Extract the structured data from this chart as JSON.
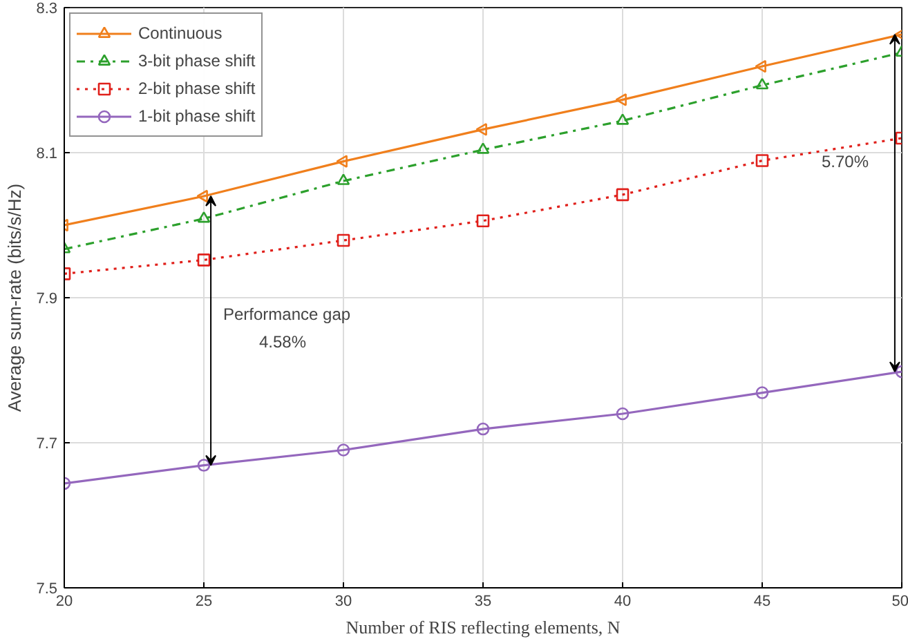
{
  "chart_data": {
    "type": "line",
    "xlabel": "Number of RIS reflecting elements, N",
    "ylabel": "Average sum-rate (bits/s/Hz)",
    "x": [
      20,
      25,
      30,
      35,
      40,
      45,
      50
    ],
    "series": [
      {
        "name": "Continuous",
        "color": "#f07f1c",
        "marker": "triangle",
        "line_style": "solid",
        "values": [
          8.0,
          8.04,
          8.088,
          8.132,
          8.173,
          8.219,
          8.263
        ]
      },
      {
        "name": "3-bit phase shift",
        "color": "#2ca02c",
        "marker": "triangle",
        "line_style": "dashed",
        "values": [
          7.967,
          8.009,
          8.061,
          8.104,
          8.144,
          8.193,
          8.238
        ]
      },
      {
        "name": "2-bit phase shift",
        "color": "#e0201b",
        "marker": "square",
        "line_style": "dotted",
        "values": [
          7.933,
          7.952,
          7.979,
          8.006,
          8.042,
          8.089,
          8.12
        ]
      },
      {
        "name": "1-bit phase shift",
        "color": "#9467bd",
        "marker": "circle",
        "line_style": "solid",
        "values": [
          7.644,
          7.669,
          7.69,
          7.719,
          7.74,
          7.769,
          7.798
        ]
      }
    ],
    "xlim": [
      20,
      50
    ],
    "ylim": [
      7.5,
      8.3
    ],
    "xticks": [
      20,
      25,
      30,
      35,
      40,
      45,
      50
    ],
    "yticks": [
      7.5,
      7.7,
      7.9,
      8.1,
      8.3
    ],
    "grid": true,
    "legend": "top left",
    "annotations": [
      "Performance gap",
      "4.58%",
      "5.70%"
    ]
  }
}
